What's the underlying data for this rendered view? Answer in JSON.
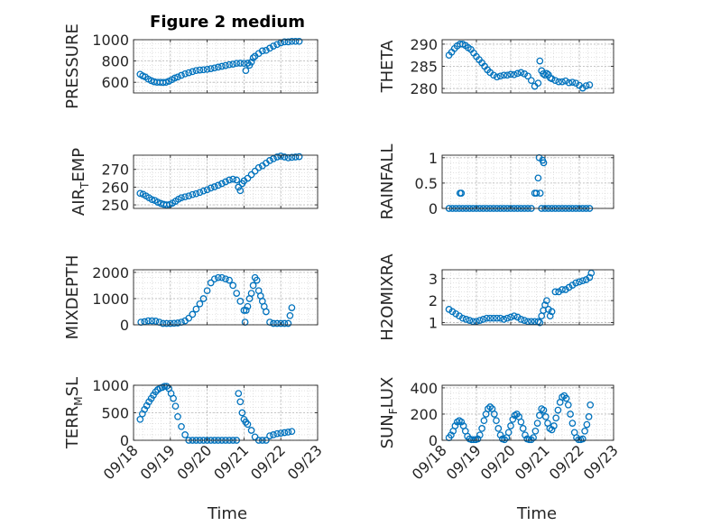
{
  "figure": {
    "title": "Figure 2 medium",
    "xlabel": "Time",
    "x_ticks": [
      "09/18",
      "09/19",
      "09/20",
      "09/21",
      "09/22",
      "09/23"
    ]
  },
  "chart_data": [
    {
      "type": "scatter",
      "ylabel": "PRESSURE",
      "ylim": [
        500,
        1000
      ],
      "yticks": [
        "600",
        "800",
        "1000"
      ],
      "xlim": [
        0,
        5
      ],
      "grid": true,
      "color": "#0072BD",
      "x": [
        0.18,
        0.25,
        0.32,
        0.4,
        0.48,
        0.56,
        0.64,
        0.72,
        0.8,
        0.88,
        0.96,
        1.04,
        1.12,
        1.2,
        1.3,
        1.4,
        1.5,
        1.6,
        1.7,
        1.8,
        1.9,
        2.0,
        2.1,
        2.2,
        2.3,
        2.4,
        2.5,
        2.6,
        2.7,
        2.8,
        2.9,
        3.0,
        3.05,
        3.1,
        3.15,
        3.2,
        3.25,
        3.3,
        3.4,
        3.5,
        3.6,
        3.7,
        3.8,
        3.9,
        4.0,
        4.1,
        4.2,
        4.3,
        4.4,
        4.5
      ],
      "y": [
        675,
        660,
        650,
        630,
        615,
        605,
        600,
        600,
        598,
        600,
        610,
        625,
        640,
        650,
        665,
        680,
        690,
        700,
        710,
        715,
        718,
        722,
        728,
        735,
        742,
        750,
        758,
        765,
        770,
        778,
        780,
        778,
        710,
        780,
        760,
        790,
        830,
        845,
        870,
        895,
        900,
        920,
        940,
        955,
        970,
        980,
        980,
        985,
        985,
        985
      ]
    },
    {
      "type": "scatter",
      "ylabel": "THETA",
      "ylim": [
        279,
        291
      ],
      "yticks": [
        "280",
        "285",
        "290"
      ],
      "xlim": [
        0,
        5
      ],
      "grid": true,
      "color": "#0072BD",
      "x": [
        0.2,
        0.28,
        0.36,
        0.44,
        0.52,
        0.6,
        0.68,
        0.76,
        0.84,
        0.92,
        1.0,
        1.08,
        1.16,
        1.24,
        1.32,
        1.4,
        1.5,
        1.6,
        1.7,
        1.8,
        1.9,
        2.0,
        2.1,
        2.2,
        2.3,
        2.4,
        2.5,
        2.6,
        2.7,
        2.8,
        2.85,
        2.9,
        2.95,
        3.0,
        3.05,
        3.1,
        3.15,
        3.2,
        3.3,
        3.4,
        3.5,
        3.6,
        3.7,
        3.8,
        3.9,
        4.0,
        4.1,
        4.2,
        4.3
      ],
      "y": [
        287.5,
        288.2,
        289,
        289.6,
        290,
        290,
        289.7,
        289.2,
        288.8,
        288,
        287.2,
        286.5,
        285.8,
        285,
        284.2,
        283.6,
        283,
        282.6,
        282.8,
        283,
        283,
        283.2,
        283.1,
        283.4,
        283.6,
        283.3,
        282.8,
        281.8,
        280.5,
        281.2,
        286.2,
        284,
        283.3,
        283,
        283.4,
        283.1,
        282.4,
        282.2,
        281.8,
        281.5,
        281.5,
        281.7,
        281.3,
        281.4,
        281.2,
        280.7,
        280.1,
        280.6,
        280.8
      ]
    },
    {
      "type": "scatter",
      "ylabel": "AIR_TEMP",
      "ylim": [
        248,
        278
      ],
      "yticks": [
        "250",
        "260",
        "270"
      ],
      "xlim": [
        0,
        5
      ],
      "grid": true,
      "color": "#0072BD",
      "x": [
        0.18,
        0.26,
        0.34,
        0.42,
        0.5,
        0.58,
        0.66,
        0.74,
        0.82,
        0.9,
        0.98,
        1.06,
        1.14,
        1.22,
        1.3,
        1.4,
        1.5,
        1.6,
        1.7,
        1.8,
        1.9,
        2.0,
        2.1,
        2.2,
        2.3,
        2.4,
        2.5,
        2.6,
        2.7,
        2.8,
        2.85,
        2.9,
        2.95,
        3.0,
        3.1,
        3.2,
        3.3,
        3.4,
        3.5,
        3.6,
        3.7,
        3.8,
        3.9,
        4.0,
        4.1,
        4.2,
        4.3,
        4.4,
        4.5
      ],
      "y": [
        256.5,
        256,
        255,
        254,
        253,
        252.5,
        251.5,
        250.8,
        250.3,
        250,
        250.2,
        251,
        252,
        253.2,
        254,
        254.5,
        255,
        255.8,
        256.3,
        257,
        257.8,
        258.5,
        259.5,
        260.2,
        261,
        262,
        263,
        264,
        264.5,
        264,
        260,
        258,
        262,
        263.5,
        265,
        267,
        269,
        271,
        272,
        273.5,
        275,
        276,
        277,
        277.5,
        277,
        276.5,
        276.8,
        277,
        277.2
      ]
    },
    {
      "type": "scatter",
      "ylabel": "RAINFALL",
      "ylim": [
        0,
        1.05
      ],
      "yticks": [
        "0",
        "0.5",
        "1"
      ],
      "xlim": [
        0,
        5
      ],
      "grid": true,
      "color": "#0072BD",
      "x": [
        0.2,
        0.3,
        0.4,
        0.5,
        0.52,
        0.56,
        0.6,
        0.7,
        0.8,
        0.9,
        1.0,
        1.1,
        1.2,
        1.3,
        1.4,
        1.5,
        1.6,
        1.7,
        1.8,
        1.9,
        2.0,
        2.1,
        2.2,
        2.3,
        2.4,
        2.5,
        2.6,
        2.7,
        2.75,
        2.8,
        2.83,
        2.86,
        2.9,
        2.93,
        2.96,
        3.0,
        3.1,
        3.2,
        3.3,
        3.4,
        3.5,
        3.6,
        3.7,
        3.8,
        3.9,
        4.0,
        4.1,
        4.2,
        4.3
      ],
      "y": [
        0,
        0,
        0,
        0,
        0.3,
        0.3,
        0,
        0,
        0,
        0,
        0,
        0,
        0,
        0,
        0,
        0,
        0,
        0,
        0,
        0,
        0,
        0,
        0,
        0,
        0,
        0,
        0,
        0.3,
        0.3,
        0.6,
        1.0,
        0.3,
        0,
        0.95,
        0.9,
        0,
        0,
        0,
        0,
        0,
        0,
        0,
        0,
        0,
        0,
        0,
        0,
        0,
        0
      ]
    },
    {
      "type": "scatter",
      "ylabel": "MIXDEPTH",
      "ylim": [
        0,
        2100
      ],
      "yticks": [
        "0",
        "1000",
        "2000"
      ],
      "xlim": [
        0,
        5
      ],
      "grid": true,
      "color": "#0072BD",
      "x": [
        0.2,
        0.3,
        0.4,
        0.5,
        0.6,
        0.7,
        0.8,
        0.9,
        1.0,
        1.1,
        1.2,
        1.3,
        1.4,
        1.5,
        1.6,
        1.7,
        1.8,
        1.9,
        2.0,
        2.1,
        2.2,
        2.3,
        2.4,
        2.5,
        2.6,
        2.7,
        2.8,
        2.9,
        3.0,
        3.03,
        3.06,
        3.1,
        3.15,
        3.2,
        3.25,
        3.3,
        3.35,
        3.4,
        3.45,
        3.5,
        3.55,
        3.6,
        3.7,
        3.8,
        3.9,
        4.0,
        4.1,
        4.2,
        4.25,
        4.3
      ],
      "y": [
        100,
        120,
        150,
        150,
        140,
        100,
        50,
        50,
        50,
        60,
        70,
        100,
        150,
        250,
        400,
        600,
        800,
        1000,
        1300,
        1600,
        1750,
        1800,
        1800,
        1750,
        1700,
        1500,
        1200,
        900,
        550,
        100,
        550,
        700,
        1000,
        1200,
        1500,
        1800,
        1700,
        1300,
        1100,
        900,
        700,
        500,
        100,
        50,
        50,
        50,
        50,
        50,
        350,
        650
      ]
    },
    {
      "type": "scatter",
      "ylabel": "H2OMIXRA",
      "ylim": [
        0.9,
        3.4
      ],
      "yticks": [
        "1",
        "2",
        "3"
      ],
      "xlim": [
        0,
        5
      ],
      "grid": true,
      "color": "#0072BD",
      "x": [
        0.2,
        0.3,
        0.4,
        0.5,
        0.6,
        0.7,
        0.8,
        0.9,
        1.0,
        1.1,
        1.2,
        1.3,
        1.4,
        1.5,
        1.6,
        1.7,
        1.8,
        1.9,
        2.0,
        2.1,
        2.2,
        2.3,
        2.4,
        2.5,
        2.6,
        2.7,
        2.8,
        2.85,
        2.9,
        2.95,
        3.0,
        3.05,
        3.1,
        3.15,
        3.2,
        3.3,
        3.4,
        3.5,
        3.6,
        3.7,
        3.8,
        3.9,
        4.0,
        4.1,
        4.2,
        4.3,
        4.35
      ],
      "y": [
        1.6,
        1.5,
        1.4,
        1.3,
        1.2,
        1.15,
        1.1,
        1.05,
        1.05,
        1.1,
        1.15,
        1.2,
        1.2,
        1.2,
        1.2,
        1.2,
        1.15,
        1.2,
        1.25,
        1.3,
        1.25,
        1.15,
        1.1,
        1.05,
        1.05,
        1.05,
        1.05,
        1.0,
        1.3,
        1.55,
        1.8,
        2.0,
        1.6,
        1.3,
        1.5,
        2.4,
        2.4,
        2.5,
        2.5,
        2.6,
        2.7,
        2.8,
        2.85,
        2.9,
        2.95,
        3.05,
        3.25
      ]
    },
    {
      "type": "scatter",
      "ylabel": "TERR_MSL",
      "ylim": [
        0,
        1000
      ],
      "yticks": [
        "0",
        "500",
        "1000"
      ],
      "xlim": [
        0,
        5
      ],
      "grid": true,
      "color": "#0072BD",
      "x": [
        0.18,
        0.24,
        0.3,
        0.36,
        0.42,
        0.48,
        0.54,
        0.6,
        0.66,
        0.72,
        0.78,
        0.84,
        0.9,
        0.96,
        1.02,
        1.08,
        1.14,
        1.2,
        1.3,
        1.4,
        1.5,
        1.6,
        1.7,
        1.8,
        1.9,
        2.0,
        2.1,
        2.2,
        2.3,
        2.4,
        2.5,
        2.6,
        2.7,
        2.8,
        2.85,
        2.9,
        2.95,
        3.0,
        3.05,
        3.1,
        3.2,
        3.3,
        3.4,
        3.5,
        3.6,
        3.7,
        3.8,
        3.9,
        4.0,
        4.1,
        4.2,
        4.3
      ],
      "y": [
        380,
        480,
        560,
        630,
        700,
        760,
        820,
        880,
        920,
        950,
        960,
        980,
        980,
        940,
        850,
        760,
        620,
        430,
        250,
        100,
        0,
        0,
        0,
        0,
        0,
        0,
        0,
        0,
        0,
        0,
        0,
        0,
        0,
        0,
        850,
        700,
        500,
        380,
        330,
        290,
        180,
        60,
        0,
        0,
        0,
        80,
        100,
        120,
        130,
        140,
        150,
        160
      ]
    },
    {
      "type": "scatter",
      "ylabel": "SUN_FLUX",
      "ylim": [
        0,
        420
      ],
      "yticks": [
        "0",
        "200",
        "400"
      ],
      "xlim": [
        0,
        5
      ],
      "grid": true,
      "color": "#0072BD",
      "x": [
        0.2,
        0.26,
        0.32,
        0.38,
        0.44,
        0.5,
        0.56,
        0.62,
        0.68,
        0.74,
        0.8,
        0.86,
        0.92,
        0.98,
        1.04,
        1.1,
        1.16,
        1.22,
        1.28,
        1.34,
        1.4,
        1.46,
        1.52,
        1.58,
        1.64,
        1.7,
        1.76,
        1.82,
        1.88,
        1.94,
        2.0,
        2.06,
        2.12,
        2.18,
        2.24,
        2.3,
        2.36,
        2.42,
        2.48,
        2.54,
        2.6,
        2.66,
        2.72,
        2.78,
        2.84,
        2.9,
        2.96,
        3.02,
        3.08,
        3.14,
        3.2,
        3.26,
        3.32,
        3.38,
        3.44,
        3.5,
        3.56,
        3.62,
        3.68,
        3.74,
        3.8,
        3.86,
        3.92,
        3.98,
        4.04,
        4.1,
        4.16,
        4.22,
        4.28,
        4.32
      ],
      "y": [
        20,
        40,
        70,
        110,
        140,
        150,
        140,
        110,
        70,
        30,
        10,
        5,
        5,
        5,
        10,
        40,
        90,
        150,
        200,
        240,
        255,
        240,
        200,
        150,
        90,
        40,
        10,
        5,
        20,
        60,
        110,
        160,
        190,
        200,
        180,
        140,
        90,
        40,
        10,
        5,
        5,
        20,
        70,
        130,
        190,
        240,
        230,
        180,
        130,
        90,
        80,
        110,
        170,
        230,
        290,
        330,
        340,
        320,
        270,
        200,
        130,
        60,
        20,
        5,
        5,
        10,
        70,
        120,
        180,
        270
      ]
    }
  ]
}
